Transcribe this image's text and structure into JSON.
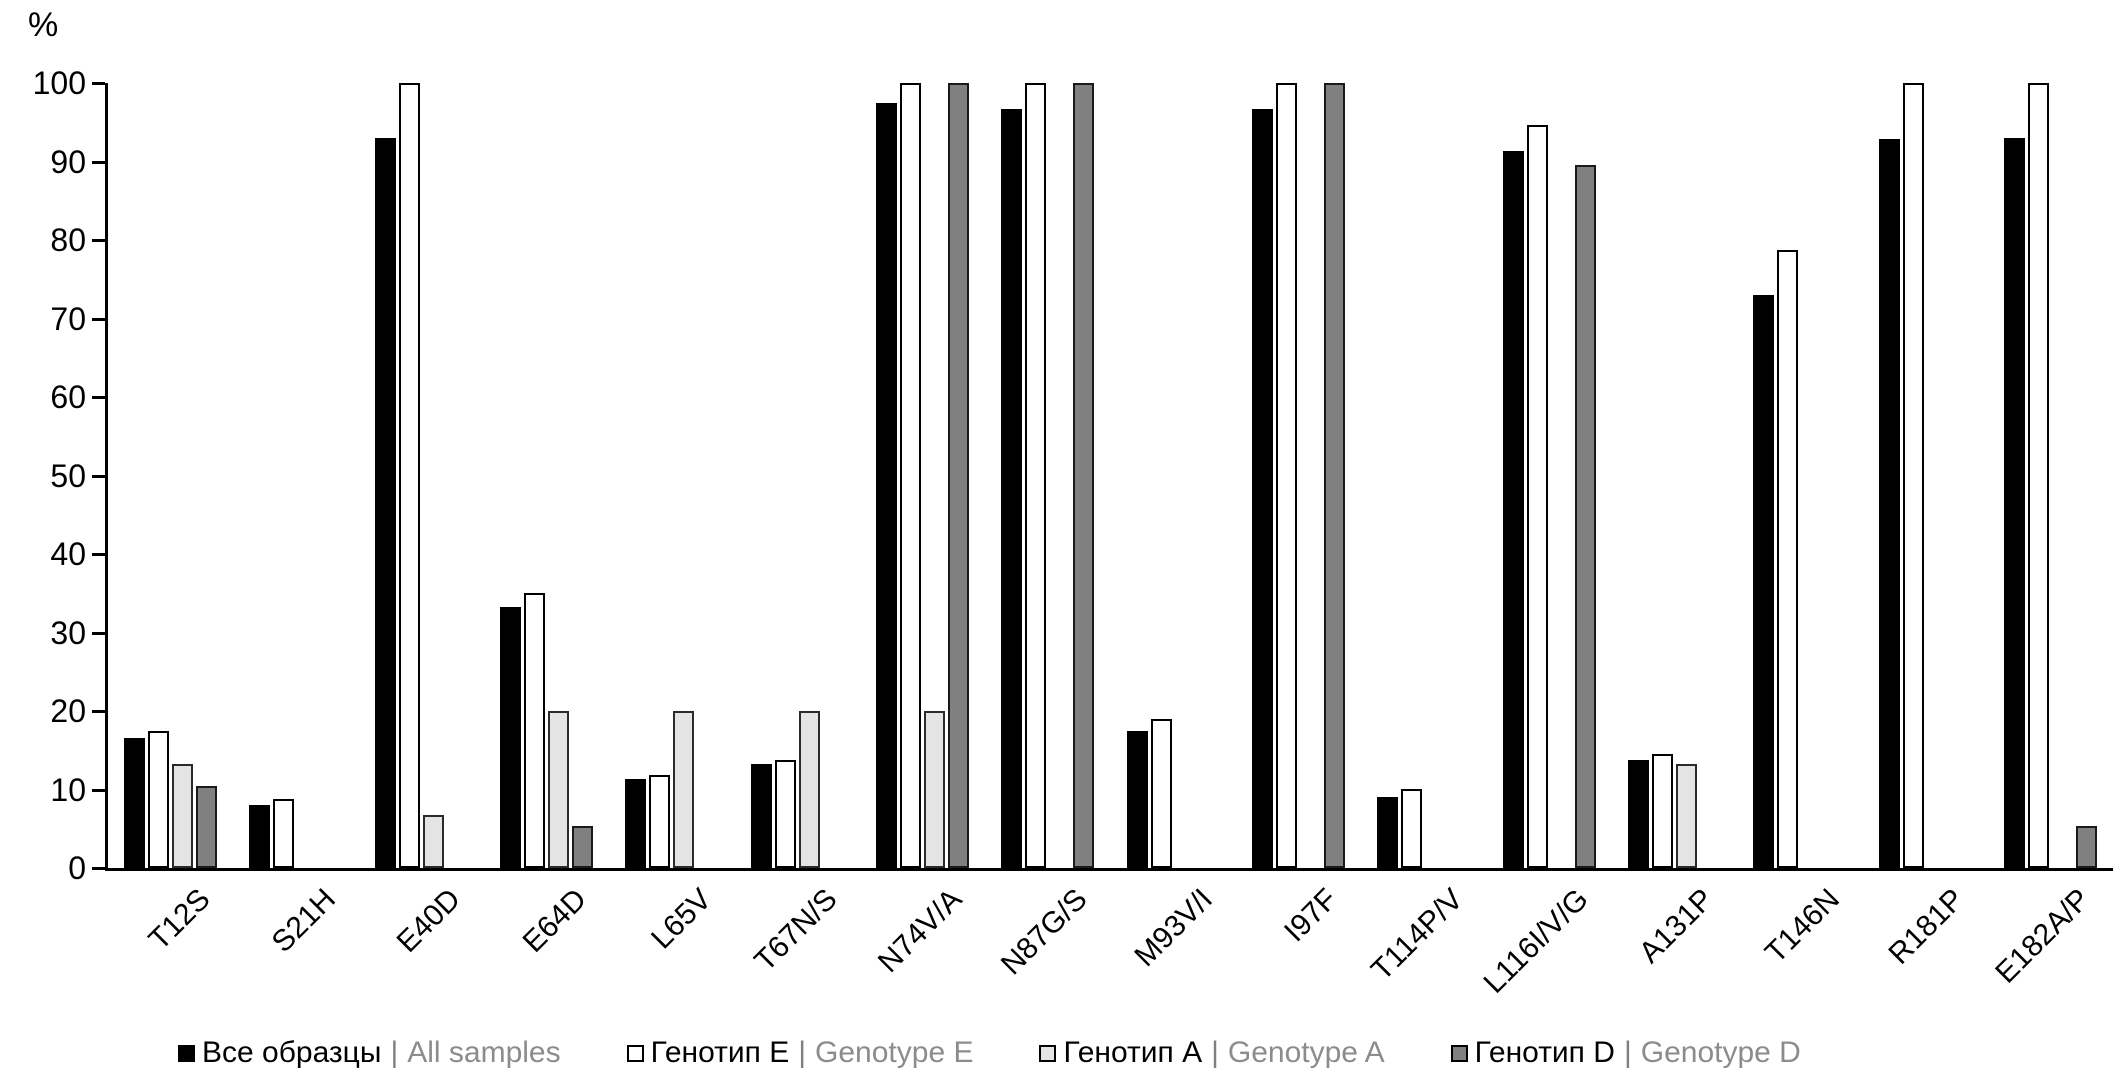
{
  "axis": {
    "percent_label": "%"
  },
  "chart_data": {
    "type": "bar",
    "title": "",
    "xlabel": "",
    "ylabel": "%",
    "ylim": [
      0,
      100
    ],
    "ytick_step": 10,
    "yticks": [
      0,
      10,
      20,
      30,
      40,
      50,
      60,
      70,
      80,
      90,
      100
    ],
    "grid": false,
    "legend_position": "bottom",
    "legend_separator": "|",
    "categories": [
      "T12S",
      "S21H",
      "E40D",
      "E64D",
      "L65V",
      "T67N/S",
      "N74V/A",
      "N87G/S",
      "M93V/I",
      "I97F",
      "T114P/V",
      "L116I/V/G",
      "A131P",
      "T146N",
      "R181P",
      "E182A/P"
    ],
    "series": [
      {
        "key": "all-samples",
        "name_ru": "Все образцы",
        "name_en": "All samples",
        "fill": "#000000",
        "border": "#000000",
        "values": [
          16.5,
          8.0,
          93.0,
          33.3,
          11.4,
          13.2,
          97.4,
          96.7,
          17.5,
          96.7,
          9.1,
          91.4,
          13.8,
          73.0,
          92.9,
          93.0
        ]
      },
      {
        "key": "genotype-e",
        "name_ru": "Генотип E",
        "name_en": "Genotype E",
        "fill": "#ffffff",
        "border": "#000000",
        "values": [
          17.5,
          8.8,
          100,
          35.0,
          11.8,
          13.7,
          100,
          100,
          19.0,
          100,
          10.0,
          94.7,
          14.5,
          78.7,
          100,
          100
        ]
      },
      {
        "key": "genotype-a",
        "name_ru": "Генотип A",
        "name_en": "Genotype A",
        "fill": "#e4e4e4",
        "border": "#2b2b2b",
        "values": [
          13.3,
          null,
          6.7,
          20.0,
          20.0,
          20.0,
          20.0,
          null,
          null,
          null,
          null,
          null,
          13.3,
          null,
          null,
          null
        ]
      },
      {
        "key": "genotype-d",
        "name_ru": "Генотип D",
        "name_en": "Genotype D",
        "fill": "#808080",
        "border": "#1a1a1a",
        "values": [
          10.5,
          null,
          null,
          5.3,
          null,
          null,
          100,
          100,
          null,
          100,
          null,
          89.5,
          null,
          null,
          null,
          5.3
        ]
      }
    ]
  }
}
